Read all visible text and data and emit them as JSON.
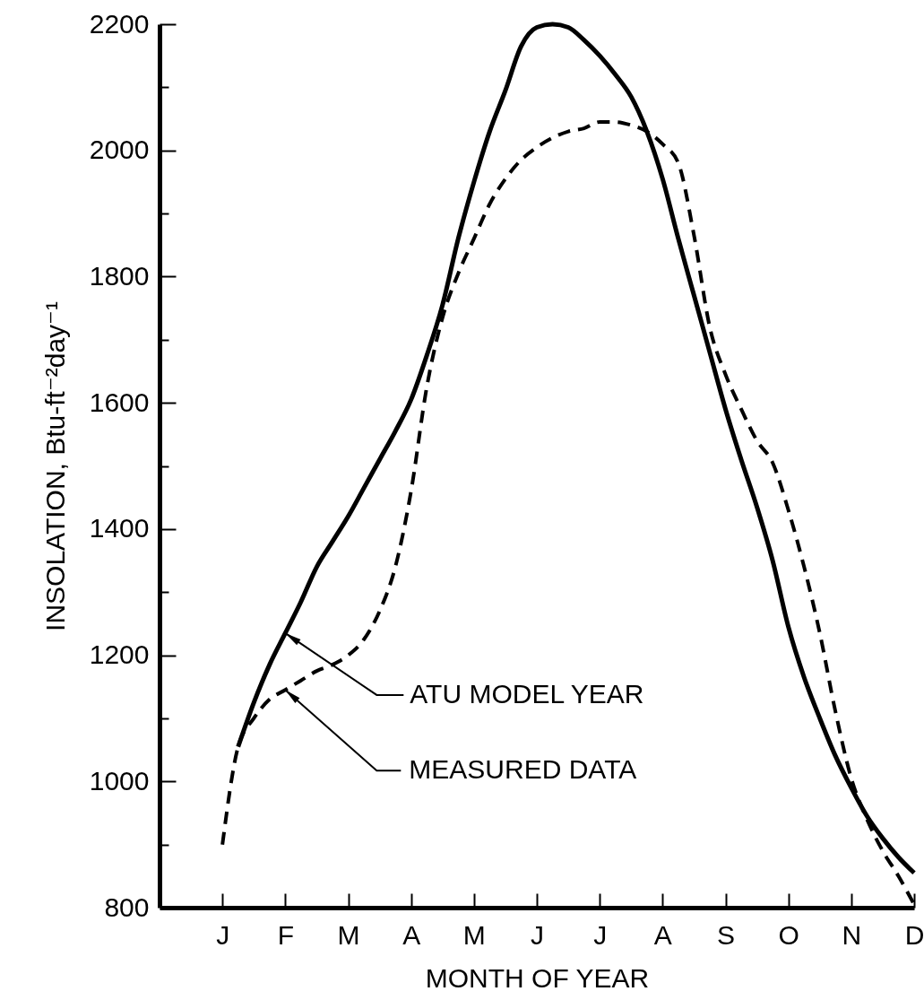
{
  "chart_data": {
    "type": "line",
    "xlabel": "MONTH OF YEAR",
    "ylabel": "INSOLATION, Btu-ft⁻²day⁻¹",
    "categories": [
      null,
      null,
      null,
      null,
      "J",
      null,
      null,
      null,
      "F",
      null,
      null,
      null,
      "M",
      null,
      null,
      null,
      "A",
      null,
      null,
      null,
      "M",
      null,
      null,
      null,
      "J",
      null,
      null,
      null,
      "J",
      null,
      null,
      null,
      "A",
      null,
      null,
      null,
      "S",
      null,
      null,
      null,
      "O",
      null,
      null,
      null,
      "N",
      null,
      null,
      null,
      "D"
    ],
    "ylim": [
      800,
      2200
    ],
    "yticks": [
      800,
      {
        "value": 900,
        "label": null
      },
      1000,
      {
        "value": 1100,
        "label": null
      },
      1200,
      {
        "value": 1300,
        "label": null
      },
      1400,
      {
        "value": 1500,
        "label": null
      },
      1600,
      {
        "value": 1700,
        "label": null
      },
      1800,
      {
        "value": 1900,
        "label": null
      },
      2000,
      {
        "value": 2100,
        "label": null
      },
      2200
    ],
    "series": [
      {
        "color": "#000000",
        "line_style": "solid",
        "values": [
          null,
          null,
          null,
          null,
          null,
          1055,
          1125,
          1185,
          1235,
          1285,
          1340,
          1380,
          1420,
          1465,
          1510,
          1555,
          1605,
          1675,
          1755,
          1860,
          1950,
          2030,
          2095,
          2165,
          2195,
          2200,
          2195,
          2175,
          2150,
          2120,
          2085,
          2030,
          1955,
          1860,
          1770,
          1680,
          1590,
          1510,
          1435,
          1350,
          1245,
          1165,
          1100,
          1040,
          990,
          945,
          910,
          880,
          855
        ]
      },
      {
        "color": "#000000",
        "line_style": "dashed",
        "values": [
          null,
          null,
          null,
          null,
          900,
          1055,
          1100,
          1130,
          1145,
          1160,
          1175,
          1185,
          1200,
          1225,
          1270,
          1340,
          1460,
          1625,
          1735,
          1805,
          1860,
          1915,
          1955,
          1985,
          2005,
          2020,
          2030,
          2035,
          2045,
          2045,
          2040,
          2030,
          2010,
          1980,
          1865,
          1720,
          1645,
          1590,
          1540,
          1505,
          1430,
          1340,
          1235,
          1110,
          1005,
          940,
          890,
          850,
          805
        ]
      }
    ],
    "annotations": [
      {
        "text": "ATU MODEL YEAR",
        "x": "F",
        "y": 1235
      },
      {
        "text": "MEASURED DATA",
        "x": "F",
        "y": 1145
      }
    ]
  }
}
